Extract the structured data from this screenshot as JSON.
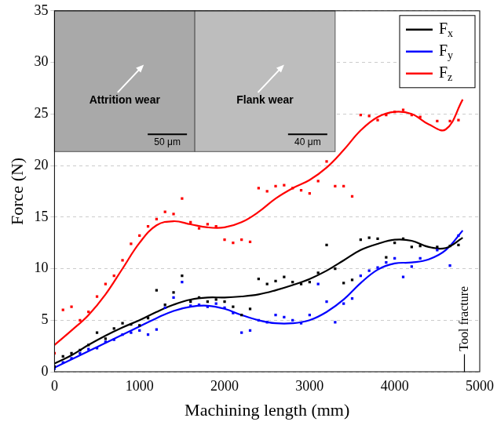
{
  "chart_data": {
    "type": "scatter",
    "x_label": "Machining length (mm)",
    "y_label": "Force (N)",
    "xlim": [
      0,
      5000
    ],
    "xticks": [
      0,
      1000,
      2000,
      3000,
      4000,
      5000
    ],
    "ylim": [
      0,
      35
    ],
    "yticks": [
      0,
      5,
      10,
      15,
      20,
      25,
      30,
      35
    ],
    "grid": "y",
    "legend": "top right",
    "x": [
      0,
      100,
      200,
      300,
      400,
      500,
      600,
      700,
      800,
      900,
      1000,
      1100,
      1200,
      1300,
      1400,
      1500,
      1600,
      1700,
      1800,
      1900,
      2000,
      2100,
      2200,
      2300,
      2400,
      2500,
      2600,
      2700,
      2800,
      2900,
      3000,
      3100,
      3200,
      3300,
      3400,
      3500,
      3600,
      3700,
      3800,
      3900,
      4000,
      4100,
      4200,
      4300,
      4500,
      4650,
      4750
    ],
    "fit_x": [
      0,
      200,
      400,
      600,
      800,
      1000,
      1200,
      1400,
      1600,
      1800,
      2000,
      2200,
      2400,
      2600,
      2800,
      3000,
      3200,
      3400,
      3600,
      3800,
      4000,
      4200,
      4400,
      4600,
      4800
    ],
    "series": [
      {
        "name": "Fx",
        "color": "#000000",
        "marker": "square",
        "line_style": "solid",
        "values": [
          0.5,
          1.5,
          1.8,
          2.1,
          2.6,
          3.8,
          3.2,
          4.2,
          4.7,
          4.6,
          4.5,
          5.2,
          7.9,
          6.5,
          7.7,
          9.3,
          6.8,
          7.2,
          6.8,
          7.0,
          6.8,
          6.3,
          5.5,
          6.1,
          9.0,
          8.5,
          8.8,
          9.2,
          8.7,
          8.5,
          8.7,
          9.6,
          12.3,
          10.0,
          8.6,
          8.9,
          12.8,
          13.0,
          12.9,
          11.1,
          12.5,
          12.9,
          12.1,
          12.2,
          12.1,
          12.2,
          12.3
        ],
        "fit_values": [
          0.8,
          1.6,
          2.6,
          3.5,
          4.3,
          5,
          5.8,
          6.5,
          7,
          7.2,
          7.2,
          7.3,
          7.5,
          7.9,
          8.4,
          9,
          9.8,
          10.8,
          11.8,
          12.4,
          12.8,
          12.7,
          12.1,
          12,
          13
        ]
      },
      {
        "name": "Fy",
        "color": "#0000ff",
        "marker": "square",
        "line_style": "solid",
        "values": [
          0.3,
          0.9,
          1.3,
          1.8,
          2.2,
          2.3,
          2.9,
          3.1,
          3.6,
          3.8,
          4.0,
          3.6,
          4.1,
          6.2,
          7.2,
          8.7,
          6.4,
          6.5,
          6.3,
          6.6,
          6.2,
          5.7,
          3.8,
          4.0,
          5.0,
          4.8,
          5.5,
          5.3,
          5.0,
          4.7,
          5.5,
          8.5,
          6.8,
          4.8,
          6.6,
          7.1,
          9.3,
          9.8,
          10.1,
          10.6,
          11.0,
          9.2,
          10.2,
          11.0,
          11.8,
          10.3,
          13.2
        ],
        "fit_values": [
          0.4,
          1.2,
          2,
          2.8,
          3.6,
          4.4,
          5.2,
          5.9,
          6.3,
          6.4,
          6.1,
          5.5,
          5,
          4.7,
          4.7,
          5,
          5.8,
          7,
          8.6,
          9.9,
          10.5,
          10.6,
          10.9,
          11.8,
          13.7
        ]
      },
      {
        "name": "Fz",
        "color": "#ff0000",
        "marker": "square",
        "line_style": "solid",
        "values": [
          1.8,
          6.0,
          6.3,
          5.0,
          5.8,
          7.3,
          8.5,
          9.3,
          10.8,
          12.4,
          13.2,
          14.1,
          14.8,
          15.5,
          15.3,
          16.8,
          14.5,
          13.9,
          14.3,
          14.1,
          12.8,
          12.5,
          12.8,
          12.6,
          17.8,
          17.5,
          18.0,
          18.1,
          17.8,
          17.6,
          17.3,
          18.5,
          20.4,
          18.0,
          18.0,
          17.0,
          24.9,
          24.8,
          24.4,
          24.9,
          25.2,
          25.4,
          24.9,
          24.7,
          24.3,
          24.3,
          24.4
        ],
        "fit_values": [
          2.6,
          4,
          5.5,
          7.5,
          10,
          12.5,
          14.2,
          14.6,
          14.3,
          14,
          14,
          14.5,
          15.5,
          16.8,
          17.8,
          18.6,
          19.8,
          21.5,
          23.4,
          24.7,
          25.2,
          25,
          24,
          23.5,
          26.4
        ]
      }
    ],
    "annotations": [
      {
        "text": "Tool fracture",
        "x": 4820,
        "y": 1.7
      }
    ],
    "insets": [
      {
        "label": "Attrition wear",
        "scale_bar": "50 μm"
      },
      {
        "label": "Flank wear",
        "scale_bar": "40 μm"
      }
    ]
  }
}
